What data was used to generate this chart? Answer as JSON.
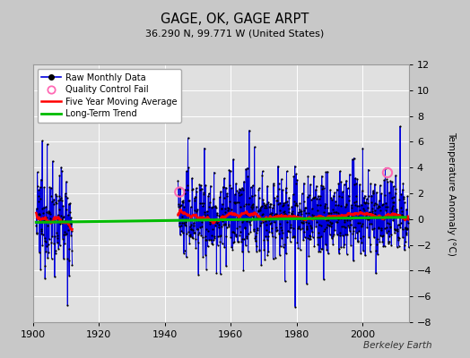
{
  "title": "GAGE, OK, GAGE ARPT",
  "subtitle": "36.290 N, 99.771 W (United States)",
  "ylabel": "Temperature Anomaly (°C)",
  "credit": "Berkeley Earth",
  "xlim": [
    1900,
    2014
  ],
  "ylim": [
    -8,
    12
  ],
  "yticks": [
    -8,
    -6,
    -4,
    -2,
    0,
    2,
    4,
    6,
    8,
    10,
    12
  ],
  "xticks": [
    1900,
    1920,
    1940,
    1960,
    1980,
    2000
  ],
  "bg_color": "#c8c8c8",
  "plot_bg_color": "#e0e0e0",
  "grid_color": "#ffffff",
  "raw_color": "#0000dd",
  "raw_marker_color": "#000000",
  "ma_color": "#ff0000",
  "trend_color": "#00bb00",
  "qc_color": "#ff69b4",
  "trend_intercept": -0.25,
  "trend_slope": 0.0035,
  "seg1_start": 1901,
  "seg1_end": 1911,
  "seg2_start": 1944,
  "seg2_end": 2013,
  "qc_years": [
    1944.5,
    2007.5
  ],
  "qc_vals": [
    2.1,
    3.6
  ]
}
